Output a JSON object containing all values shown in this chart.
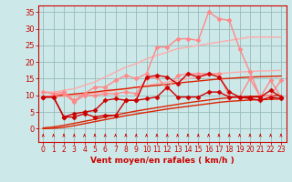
{
  "background_color": "#cce8e8",
  "grid_color": "#99bbbb",
  "x_values": [
    0,
    1,
    2,
    3,
    4,
    5,
    6,
    7,
    8,
    9,
    10,
    11,
    12,
    13,
    14,
    15,
    16,
    17,
    18,
    19,
    20,
    21,
    22,
    23
  ],
  "xlabel": "Vent moyen/en rafales ( km/h )",
  "ylim": [
    -4,
    37
  ],
  "xlim": [
    -0.5,
    23.5
  ],
  "yticks": [
    0,
    5,
    10,
    15,
    20,
    25,
    30,
    35
  ],
  "xticks": [
    0,
    1,
    2,
    3,
    4,
    5,
    6,
    7,
    8,
    9,
    10,
    11,
    12,
    13,
    14,
    15,
    16,
    17,
    18,
    19,
    20,
    21,
    22,
    23
  ],
  "series": [
    {
      "color": "#ffaaaa",
      "linewidth": 1.0,
      "marker": null,
      "linestyle": "-",
      "values": [
        11.0,
        11.0,
        11.5,
        12.0,
        13.0,
        14.0,
        15.5,
        17.0,
        18.5,
        19.5,
        21.0,
        22.0,
        23.0,
        24.0,
        24.5,
        25.0,
        25.5,
        26.0,
        26.5,
        27.0,
        27.5,
        27.5,
        27.5,
        27.5
      ]
    },
    {
      "color": "#ffaaaa",
      "linewidth": 1.0,
      "marker": null,
      "linestyle": "-",
      "values": [
        9.5,
        9.5,
        9.7,
        10.0,
        10.3,
        10.7,
        11.0,
        11.5,
        12.0,
        12.5,
        13.0,
        13.5,
        14.0,
        14.5,
        15.0,
        15.5,
        16.0,
        16.5,
        16.8,
        17.0,
        17.2,
        17.3,
        17.4,
        17.5
      ]
    },
    {
      "color": "#dd2200",
      "linewidth": 1.0,
      "marker": null,
      "linestyle": "-",
      "values": [
        9.5,
        9.8,
        10.1,
        10.4,
        10.7,
        11.0,
        11.4,
        11.7,
        12.0,
        12.4,
        12.7,
        13.0,
        13.3,
        13.7,
        14.0,
        14.3,
        14.6,
        14.9,
        15.1,
        15.3,
        15.5,
        15.6,
        15.7,
        15.8
      ]
    },
    {
      "color": "#dd2200",
      "linewidth": 1.0,
      "marker": null,
      "linestyle": "-",
      "values": [
        0.2,
        0.5,
        1.0,
        1.6,
        2.2,
        2.8,
        3.5,
        4.1,
        4.7,
        5.3,
        5.8,
        6.3,
        6.8,
        7.3,
        7.8,
        8.2,
        8.6,
        9.0,
        9.3,
        9.5,
        9.7,
        9.8,
        9.9,
        10.0
      ]
    },
    {
      "color": "#dd2200",
      "linewidth": 1.0,
      "marker": null,
      "linestyle": "-",
      "values": [
        0.0,
        0.1,
        0.4,
        0.9,
        1.5,
        2.1,
        2.7,
        3.3,
        3.9,
        4.4,
        4.9,
        5.4,
        5.9,
        6.3,
        6.7,
        7.1,
        7.5,
        7.9,
        8.2,
        8.4,
        8.6,
        8.7,
        8.8,
        8.9
      ]
    },
    {
      "color": "#ff8888",
      "linewidth": 1.0,
      "marker": "D",
      "markersize": 2.5,
      "linestyle": "-",
      "values": [
        11.0,
        10.5,
        11.0,
        8.5,
        10.5,
        12.5,
        12.5,
        14.5,
        16.0,
        15.0,
        16.5,
        24.5,
        24.5,
        27.0,
        27.0,
        26.5,
        35.0,
        33.0,
        32.5,
        24.0,
        17.0,
        9.5,
        14.5,
        9.5
      ]
    },
    {
      "color": "#ff8888",
      "linewidth": 1.0,
      "marker": "D",
      "markersize": 2.5,
      "linestyle": "-",
      "values": [
        9.5,
        10.0,
        10.5,
        8.0,
        10.0,
        10.0,
        10.5,
        10.5,
        11.0,
        10.5,
        15.0,
        15.5,
        12.0,
        16.0,
        16.5,
        16.5,
        16.5,
        16.5,
        9.5,
        9.5,
        15.0,
        9.5,
        10.0,
        14.5
      ]
    },
    {
      "color": "#cc0000",
      "linewidth": 1.0,
      "marker": "D",
      "markersize": 2.5,
      "linestyle": "-",
      "values": [
        9.5,
        9.5,
        3.5,
        4.5,
        5.0,
        5.5,
        8.5,
        9.0,
        8.5,
        8.5,
        15.5,
        16.0,
        15.5,
        13.5,
        16.5,
        15.5,
        16.5,
        15.5,
        11.0,
        9.5,
        9.5,
        9.5,
        11.5,
        9.5
      ]
    },
    {
      "color": "#cc0000",
      "linewidth": 1.0,
      "marker": "D",
      "markersize": 2.5,
      "linestyle": "-",
      "values": [
        9.5,
        9.5,
        3.5,
        3.5,
        4.5,
        3.5,
        4.0,
        4.0,
        8.5,
        8.5,
        9.0,
        9.5,
        12.5,
        9.5,
        9.5,
        9.5,
        11.0,
        11.0,
        9.5,
        9.5,
        9.0,
        8.5,
        9.5,
        9.0
      ]
    }
  ],
  "axis_color": "#cc0000",
  "tick_color": "#cc0000",
  "label_color": "#cc0000",
  "xlabel_fontsize": 6.5,
  "tick_fontsize": 5.5,
  "ytick_fontsize": 6.0
}
